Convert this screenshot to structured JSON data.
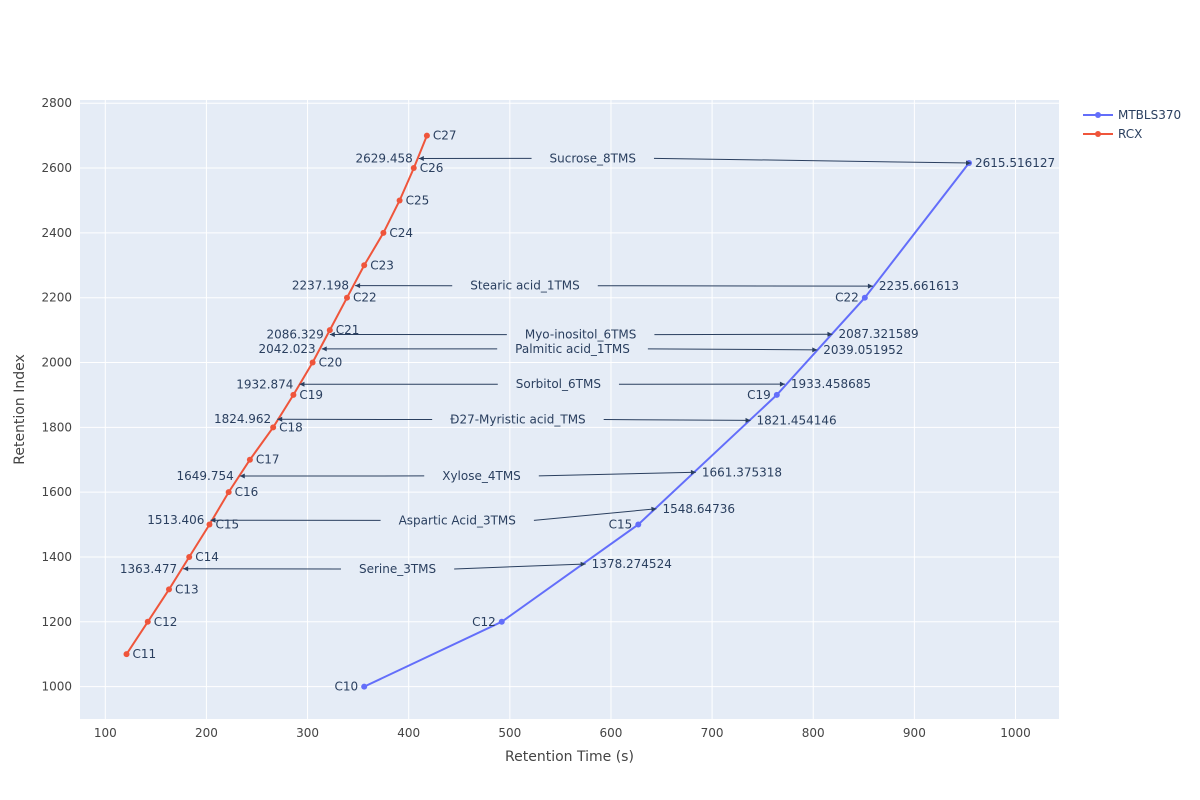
{
  "chart_data": {
    "type": "scatter",
    "xlabel": "Retention Time (s)",
    "ylabel": "Retention Index",
    "xlim": [
      75,
      1043
    ],
    "ylim": [
      900,
      2810
    ],
    "x_ticks": [
      100,
      200,
      300,
      400,
      500,
      600,
      700,
      800,
      900,
      1000
    ],
    "y_ticks": [
      1000,
      1200,
      1400,
      1600,
      1800,
      2000,
      2200,
      2400,
      2600,
      2800
    ],
    "grid": true,
    "legend_position": "top-right",
    "series": [
      {
        "name": "MTBLS370",
        "color": "#636efa",
        "points": [
          {
            "x": 356,
            "y": 1000,
            "label": "C10",
            "label_side": "left"
          },
          {
            "x": 492,
            "y": 1200,
            "label": "C12",
            "label_side": "left"
          },
          {
            "x": 627,
            "y": 1500,
            "label": "C15",
            "label_side": "left"
          },
          {
            "x": 764,
            "y": 1900,
            "label": "C19",
            "label_side": "left"
          },
          {
            "x": 851,
            "y": 2200,
            "label": "C22",
            "label_side": "left"
          },
          {
            "x": 954,
            "y": 2615.516127,
            "label": "2615.516127",
            "label_side": "right"
          }
        ]
      },
      {
        "name": "RCX",
        "color": "#ef553b",
        "points": [
          {
            "x": 121,
            "y": 1100,
            "label": "C11",
            "label_side": "right"
          },
          {
            "x": 142,
            "y": 1200,
            "label": "C12",
            "label_side": "right"
          },
          {
            "x": 163,
            "y": 1300,
            "label": "C13",
            "label_side": "right"
          },
          {
            "x": 183,
            "y": 1400,
            "label": "C14",
            "label_side": "right"
          },
          {
            "x": 203,
            "y": 1500,
            "label": "C15",
            "label_side": "right"
          },
          {
            "x": 222,
            "y": 1600,
            "label": "C16",
            "label_side": "right"
          },
          {
            "x": 243,
            "y": 1700,
            "label": "C17",
            "label_side": "right"
          },
          {
            "x": 266,
            "y": 1800,
            "label": "C18",
            "label_side": "right"
          },
          {
            "x": 286,
            "y": 1900,
            "label": "C19",
            "label_side": "right"
          },
          {
            "x": 305,
            "y": 2000,
            "label": "C20",
            "label_side": "right"
          },
          {
            "x": 322,
            "y": 2100,
            "label": "C21",
            "label_side": "right"
          },
          {
            "x": 339,
            "y": 2200,
            "label": "C22",
            "label_side": "right"
          },
          {
            "x": 356,
            "y": 2300,
            "label": "C23",
            "label_side": "right"
          },
          {
            "x": 375,
            "y": 2400,
            "label": "C24",
            "label_side": "right"
          },
          {
            "x": 391,
            "y": 2500,
            "label": "C25",
            "label_side": "right"
          },
          {
            "x": 405,
            "y": 2600,
            "label": "C26",
            "label_side": "right"
          },
          {
            "x": 418,
            "y": 2700,
            "label": "C27",
            "label_side": "right"
          }
        ]
      }
    ],
    "annotations": [
      {
        "name": "Sucrose_8TMS",
        "text_x": 582,
        "text_y": 2630,
        "rcx_x": 410,
        "rcx_ri": 2629.458,
        "rcx_label": "2629.458",
        "mtbls_x": 956,
        "mtbls_ri": 2615.516127,
        "mtbls_label": ""
      },
      {
        "name": "Stearic acid_1TMS",
        "text_x": 515,
        "text_y": 2237,
        "rcx_x": 347,
        "rcx_ri": 2237.198,
        "rcx_label": "2237.198",
        "mtbls_x": 859,
        "mtbls_ri": 2235.661613,
        "mtbls_label": "2235.661613"
      },
      {
        "name": "Myo-inositol_6TMS",
        "text_x": 570,
        "text_y": 2086,
        "rcx_x": 322,
        "rcx_ri": 2086.329,
        "rcx_label": "2086.329",
        "mtbls_x": 819,
        "mtbls_ri": 2087.321589,
        "mtbls_label": "2087.321589"
      },
      {
        "name": "Palmitic acid_1TMS",
        "text_x": 562,
        "text_y": 2042,
        "rcx_x": 314,
        "rcx_ri": 2042.023,
        "rcx_label": "2042.023",
        "mtbls_x": 804,
        "mtbls_ri": 2039.051952,
        "mtbls_label": "2039.051952"
      },
      {
        "name": "Sorbitol_6TMS",
        "text_x": 548,
        "text_y": 1933,
        "rcx_x": 292,
        "rcx_ri": 1932.874,
        "rcx_label": "1932.874",
        "mtbls_x": 772,
        "mtbls_ri": 1933.458685,
        "mtbls_label": "1933.458685"
      },
      {
        "name": "Ð27-Myristic acid_TMS",
        "text_x": 508,
        "text_y": 1824,
        "rcx_x": 270,
        "rcx_ri": 1824.962,
        "rcx_label": "1824.962",
        "mtbls_x": 738,
        "mtbls_ri": 1821.454146,
        "mtbls_label": "1821.454146"
      },
      {
        "name": "Xylose_4TMS",
        "text_x": 472,
        "text_y": 1650,
        "rcx_x": 233,
        "rcx_ri": 1649.754,
        "rcx_label": "1649.754",
        "mtbls_x": 684,
        "mtbls_ri": 1661.375318,
        "mtbls_label": "1661.375318"
      },
      {
        "name": "Aspartic Acid_3TMS",
        "text_x": 448,
        "text_y": 1513,
        "rcx_x": 204,
        "rcx_ri": 1513.406,
        "rcx_label": "1513.406",
        "mtbls_x": 645,
        "mtbls_ri": 1548.64736,
        "mtbls_label": "1548.64736"
      },
      {
        "name": "Serine_3TMS",
        "text_x": 389,
        "text_y": 1363,
        "rcx_x": 177,
        "rcx_ri": 1363.477,
        "rcx_label": "1363.477",
        "mtbls_x": 575,
        "mtbls_ri": 1378.274524,
        "mtbls_label": "1378.274524"
      }
    ]
  }
}
